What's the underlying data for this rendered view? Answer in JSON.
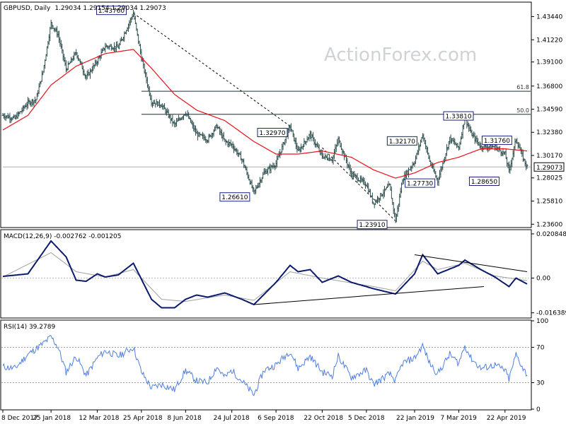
{
  "chart_data": [
    {
      "type": "ohlc",
      "title": "GBPUSD, Daily",
      "header_values": "1.29034 1.29154 1.29034 1.29073",
      "watermark": "ActionForex.com",
      "x_tick_labels": [
        "8 Dec 2017",
        "25 Jan 2018",
        "12 Mar 2018",
        "25 Apr 2018",
        "8 Jun 2018",
        "24 Jul 2018",
        "6 Sep 2018",
        "22 Oct 2018",
        "5 Dec 2018",
        "22 Jan 2019",
        "7 Mar 2019",
        "22 Apr 2019"
      ],
      "y_ticks": [
        "1.43440",
        "1.41220",
        "1.39100",
        "1.36800",
        "1.34590",
        "1.32380",
        "1.30170",
        "1.28025",
        "1.25810",
        "1.23600"
      ],
      "ylim": [
        1.2335,
        1.4475
      ],
      "price_series": [
        {
          "date": "2017-12-08",
          "close": 1.34
        },
        {
          "date": "2017-12-20",
          "close": 1.337
        },
        {
          "date": "2018-01-02",
          "close": 1.352
        },
        {
          "date": "2018-01-10",
          "close": 1.355
        },
        {
          "date": "2018-01-17",
          "close": 1.382
        },
        {
          "date": "2018-01-25",
          "close": 1.428
        },
        {
          "date": "2018-02-01",
          "close": 1.417
        },
        {
          "date": "2018-02-09",
          "close": 1.384
        },
        {
          "date": "2018-02-19",
          "close": 1.4
        },
        {
          "date": "2018-03-01",
          "close": 1.376
        },
        {
          "date": "2018-03-12",
          "close": 1.392
        },
        {
          "date": "2018-03-20",
          "close": 1.406
        },
        {
          "date": "2018-04-02",
          "close": 1.405
        },
        {
          "date": "2018-04-17",
          "close": 1.4376
        },
        {
          "date": "2018-04-25",
          "close": 1.395
        },
        {
          "date": "2018-05-05",
          "close": 1.353
        },
        {
          "date": "2018-05-15",
          "close": 1.35
        },
        {
          "date": "2018-05-28",
          "close": 1.331
        },
        {
          "date": "2018-06-08",
          "close": 1.343
        },
        {
          "date": "2018-06-19",
          "close": 1.322
        },
        {
          "date": "2018-06-30",
          "close": 1.317
        },
        {
          "date": "2018-07-09",
          "close": 1.33
        },
        {
          "date": "2018-07-17",
          "close": 1.315
        },
        {
          "date": "2018-07-24",
          "close": 1.312
        },
        {
          "date": "2018-08-03",
          "close": 1.298
        },
        {
          "date": "2018-08-15",
          "close": 1.2661
        },
        {
          "date": "2018-08-25",
          "close": 1.285
        },
        {
          "date": "2018-09-06",
          "close": 1.294
        },
        {
          "date": "2018-09-20",
          "close": 1.3297
        },
        {
          "date": "2018-09-28",
          "close": 1.305
        },
        {
          "date": "2018-10-10",
          "close": 1.322
        },
        {
          "date": "2018-10-22",
          "close": 1.301
        },
        {
          "date": "2018-11-01",
          "close": 1.298
        },
        {
          "date": "2018-11-07",
          "close": 1.317
        },
        {
          "date": "2018-11-20",
          "close": 1.284
        },
        {
          "date": "2018-12-05",
          "close": 1.274
        },
        {
          "date": "2018-12-12",
          "close": 1.256
        },
        {
          "date": "2018-12-28",
          "close": 1.273
        },
        {
          "date": "2019-01-03",
          "close": 1.2391
        },
        {
          "date": "2019-01-10",
          "close": 1.279
        },
        {
          "date": "2019-01-22",
          "close": 1.296
        },
        {
          "date": "2019-01-30",
          "close": 1.3217
        },
        {
          "date": "2019-02-06",
          "close": 1.296
        },
        {
          "date": "2019-02-14",
          "close": 1.2773
        },
        {
          "date": "2019-02-26",
          "close": 1.318
        },
        {
          "date": "2019-03-07",
          "close": 1.309
        },
        {
          "date": "2019-03-13",
          "close": 1.3381
        },
        {
          "date": "2019-03-19",
          "close": 1.323
        },
        {
          "date": "2019-03-29",
          "close": 1.31
        },
        {
          "date": "2019-04-12",
          "close": 1.31
        },
        {
          "date": "2019-04-22",
          "close": 1.303
        },
        {
          "date": "2019-04-26",
          "close": 1.2865
        },
        {
          "date": "2019-05-03",
          "close": 1.3176
        },
        {
          "date": "2019-05-10",
          "close": 1.299
        },
        {
          "date": "2019-05-14",
          "close": 1.2907
        }
      ],
      "moving_average_series": [
        {
          "date": "2017-12-08",
          "value": 1.326
        },
        {
          "date": "2018-01-02",
          "value": 1.34
        },
        {
          "date": "2018-01-25",
          "value": 1.369
        },
        {
          "date": "2018-02-19",
          "value": 1.387
        },
        {
          "date": "2018-03-20",
          "value": 1.399
        },
        {
          "date": "2018-04-17",
          "value": 1.403
        },
        {
          "date": "2018-05-05",
          "value": 1.385
        },
        {
          "date": "2018-05-28",
          "value": 1.36
        },
        {
          "date": "2018-06-19",
          "value": 1.345
        },
        {
          "date": "2018-07-17",
          "value": 1.335
        },
        {
          "date": "2018-08-15",
          "value": 1.315
        },
        {
          "date": "2018-09-06",
          "value": 1.303
        },
        {
          "date": "2018-09-28",
          "value": 1.303
        },
        {
          "date": "2018-10-22",
          "value": 1.306
        },
        {
          "date": "2018-11-20",
          "value": 1.3
        },
        {
          "date": "2018-12-12",
          "value": 1.288
        },
        {
          "date": "2019-01-03",
          "value": 1.28
        },
        {
          "date": "2019-01-22",
          "value": 1.285
        },
        {
          "date": "2019-02-14",
          "value": 1.295
        },
        {
          "date": "2019-03-07",
          "value": 1.3
        },
        {
          "date": "2019-03-29",
          "value": 1.308
        },
        {
          "date": "2019-04-22",
          "value": 1.308
        },
        {
          "date": "2019-05-14",
          "value": 1.306
        }
      ],
      "horizontal_levels": [
        {
          "label": "61.8",
          "value": 1.363,
          "from": "2018-04-25"
        },
        {
          "label": "50.0",
          "value": 1.341,
          "from": "2018-04-25"
        },
        {
          "label": "",
          "value": 1.2907,
          "from": "2017-12-08"
        }
      ],
      "trendlines": [
        {
          "from": {
            "date": "2018-04-17",
            "value": 1.4376
          },
          "to": {
            "date": "2018-09-20",
            "value": 1.3297
          },
          "style": "dashed"
        },
        {
          "from": {
            "date": "2018-10-22",
            "value": 1.309
          },
          "to": {
            "date": "2019-01-03",
            "value": 1.2391
          },
          "style": "dashed"
        }
      ],
      "annotations": [
        {
          "text": "1.43760",
          "date": "2018-04-17",
          "value": 1.4376
        },
        {
          "text": "1.32970",
          "date": "2018-09-20",
          "value": 1.3297
        },
        {
          "text": "1.26610",
          "date": "2018-08-15",
          "value": 1.2661
        },
        {
          "text": "1.23910",
          "date": "2019-01-03",
          "value": 1.2391
        },
        {
          "text": "1.32170",
          "date": "2019-01-30",
          "value": 1.3217
        },
        {
          "text": "1.27730",
          "date": "2019-02-14",
          "value": 1.2773
        },
        {
          "text": "1.33810",
          "date": "2019-03-13",
          "value": 1.3381
        },
        {
          "text": "1.31760",
          "date": "2019-05-03",
          "value": 1.3176
        },
        {
          "text": "1.28650",
          "date": "2019-04-26",
          "value": 1.2865
        }
      ],
      "last_price_label": "1.29073",
      "colors": {
        "price": "#2f4f4f",
        "moving_average": "#e8111a",
        "grid_level": "#1f2f2f"
      }
    },
    {
      "type": "line",
      "title": "MACD(12,26,9) -0.002762 -0.001205",
      "y_ticks": [
        "0.020848",
        "0.00",
        "-0.016389"
      ],
      "ylim": [
        -0.0185,
        0.0225
      ],
      "macd_series": [
        {
          "date": "2017-12-08",
          "value": 0.0008
        },
        {
          "date": "2018-01-02",
          "value": 0.002
        },
        {
          "date": "2018-01-25",
          "value": 0.0175
        },
        {
          "date": "2018-02-09",
          "value": 0.01
        },
        {
          "date": "2018-02-19",
          "value": -0.001
        },
        {
          "date": "2018-03-01",
          "value": -0.0015
        },
        {
          "date": "2018-03-12",
          "value": 0.002
        },
        {
          "date": "2018-03-20",
          "value": 0.0005
        },
        {
          "date": "2018-04-02",
          "value": 0.0015
        },
        {
          "date": "2018-04-17",
          "value": 0.007
        },
        {
          "date": "2018-05-05",
          "value": -0.01
        },
        {
          "date": "2018-05-15",
          "value": -0.014
        },
        {
          "date": "2018-05-28",
          "value": -0.014
        },
        {
          "date": "2018-06-08",
          "value": -0.01
        },
        {
          "date": "2018-06-19",
          "value": -0.008
        },
        {
          "date": "2018-06-30",
          "value": -0.009
        },
        {
          "date": "2018-07-17",
          "value": -0.007
        },
        {
          "date": "2018-08-03",
          "value": -0.01
        },
        {
          "date": "2018-08-15",
          "value": -0.0125
        },
        {
          "date": "2018-09-06",
          "value": -0.002
        },
        {
          "date": "2018-09-20",
          "value": 0.006
        },
        {
          "date": "2018-09-28",
          "value": 0.003
        },
        {
          "date": "2018-10-10",
          "value": 0.004
        },
        {
          "date": "2018-10-22",
          "value": -0.002
        },
        {
          "date": "2018-11-07",
          "value": 0.001
        },
        {
          "date": "2018-11-20",
          "value": -0.002
        },
        {
          "date": "2018-12-12",
          "value": -0.005
        },
        {
          "date": "2019-01-03",
          "value": -0.0075
        },
        {
          "date": "2019-01-22",
          "value": 0.002
        },
        {
          "date": "2019-01-30",
          "value": 0.011
        },
        {
          "date": "2019-02-14",
          "value": 0.002
        },
        {
          "date": "2019-03-07",
          "value": 0.006
        },
        {
          "date": "2019-03-13",
          "value": 0.0085
        },
        {
          "date": "2019-03-29",
          "value": 0.004
        },
        {
          "date": "2019-04-12",
          "value": 0.0005
        },
        {
          "date": "2019-04-26",
          "value": -0.004
        },
        {
          "date": "2019-05-03",
          "value": 0.0
        },
        {
          "date": "2019-05-14",
          "value": -0.0028
        }
      ],
      "signal_series": [
        {
          "date": "2017-12-08",
          "value": 0.0005
        },
        {
          "date": "2018-01-25",
          "value": 0.012
        },
        {
          "date": "2018-02-19",
          "value": 0.003
        },
        {
          "date": "2018-03-20",
          "value": 0.0005
        },
        {
          "date": "2018-04-17",
          "value": 0.004
        },
        {
          "date": "2018-05-15",
          "value": -0.01
        },
        {
          "date": "2018-06-08",
          "value": -0.011
        },
        {
          "date": "2018-07-17",
          "value": -0.008
        },
        {
          "date": "2018-08-15",
          "value": -0.0105
        },
        {
          "date": "2018-09-20",
          "value": 0.003
        },
        {
          "date": "2018-10-22",
          "value": 0.0
        },
        {
          "date": "2018-12-12",
          "value": -0.004
        },
        {
          "date": "2019-01-03",
          "value": -0.006
        },
        {
          "date": "2019-01-30",
          "value": 0.008
        },
        {
          "date": "2019-02-14",
          "value": 0.004
        },
        {
          "date": "2019-03-13",
          "value": 0.007
        },
        {
          "date": "2019-04-12",
          "value": 0.001
        },
        {
          "date": "2019-05-14",
          "value": -0.0012
        }
      ],
      "trendlines": [
        {
          "from": {
            "date": "2019-01-22",
            "value": 0.011
          },
          "to": {
            "date": "2019-05-14",
            "value": 0.003
          }
        },
        {
          "from": {
            "date": "2018-08-15",
            "value": -0.0125
          },
          "to": {
            "date": "2019-04-01",
            "value": -0.004
          }
        }
      ],
      "colors": {
        "macd": "#0a1a6e",
        "signal": "#a0a0a0",
        "zero_line": "#c0c0c0"
      }
    },
    {
      "type": "line",
      "title": "RSI(14) 39.2789",
      "y_ticks": [
        "100",
        "70",
        "30",
        "0"
      ],
      "ylim": [
        0,
        100
      ],
      "levels": [
        70,
        30
      ],
      "rsi_series": [
        {
          "date": "2017-12-08",
          "value": 48
        },
        {
          "date": "2017-12-20",
          "value": 46
        },
        {
          "date": "2018-01-02",
          "value": 62
        },
        {
          "date": "2018-01-17",
          "value": 74
        },
        {
          "date": "2018-01-25",
          "value": 82
        },
        {
          "date": "2018-02-01",
          "value": 70
        },
        {
          "date": "2018-02-09",
          "value": 42
        },
        {
          "date": "2018-02-19",
          "value": 60
        },
        {
          "date": "2018-03-01",
          "value": 38
        },
        {
          "date": "2018-03-12",
          "value": 58
        },
        {
          "date": "2018-03-20",
          "value": 66
        },
        {
          "date": "2018-04-02",
          "value": 60
        },
        {
          "date": "2018-04-17",
          "value": 70
        },
        {
          "date": "2018-04-25",
          "value": 42
        },
        {
          "date": "2018-05-05",
          "value": 24
        },
        {
          "date": "2018-05-15",
          "value": 28
        },
        {
          "date": "2018-05-28",
          "value": 22
        },
        {
          "date": "2018-06-08",
          "value": 44
        },
        {
          "date": "2018-06-19",
          "value": 32
        },
        {
          "date": "2018-06-30",
          "value": 30
        },
        {
          "date": "2018-07-09",
          "value": 48
        },
        {
          "date": "2018-07-17",
          "value": 36
        },
        {
          "date": "2018-07-24",
          "value": 44
        },
        {
          "date": "2018-08-03",
          "value": 32
        },
        {
          "date": "2018-08-15",
          "value": 16
        },
        {
          "date": "2018-08-25",
          "value": 44
        },
        {
          "date": "2018-09-06",
          "value": 50
        },
        {
          "date": "2018-09-20",
          "value": 66
        },
        {
          "date": "2018-09-28",
          "value": 46
        },
        {
          "date": "2018-10-10",
          "value": 60
        },
        {
          "date": "2018-10-22",
          "value": 42
        },
        {
          "date": "2018-11-01",
          "value": 38
        },
        {
          "date": "2018-11-07",
          "value": 60
        },
        {
          "date": "2018-11-20",
          "value": 36
        },
        {
          "date": "2018-12-05",
          "value": 44
        },
        {
          "date": "2018-12-12",
          "value": 28
        },
        {
          "date": "2018-12-28",
          "value": 40
        },
        {
          "date": "2019-01-03",
          "value": 32
        },
        {
          "date": "2019-01-10",
          "value": 52
        },
        {
          "date": "2019-01-22",
          "value": 58
        },
        {
          "date": "2019-01-30",
          "value": 72
        },
        {
          "date": "2019-02-06",
          "value": 52
        },
        {
          "date": "2019-02-14",
          "value": 40
        },
        {
          "date": "2019-02-26",
          "value": 62
        },
        {
          "date": "2019-03-07",
          "value": 52
        },
        {
          "date": "2019-03-13",
          "value": 72
        },
        {
          "date": "2019-03-19",
          "value": 58
        },
        {
          "date": "2019-03-29",
          "value": 46
        },
        {
          "date": "2019-04-12",
          "value": 50
        },
        {
          "date": "2019-04-22",
          "value": 44
        },
        {
          "date": "2019-04-26",
          "value": 34
        },
        {
          "date": "2019-05-03",
          "value": 62
        },
        {
          "date": "2019-05-10",
          "value": 46
        },
        {
          "date": "2019-05-14",
          "value": 39
        }
      ],
      "colors": {
        "rsi": "#4f7fe0",
        "level_line": "#a0a0a0"
      }
    }
  ]
}
